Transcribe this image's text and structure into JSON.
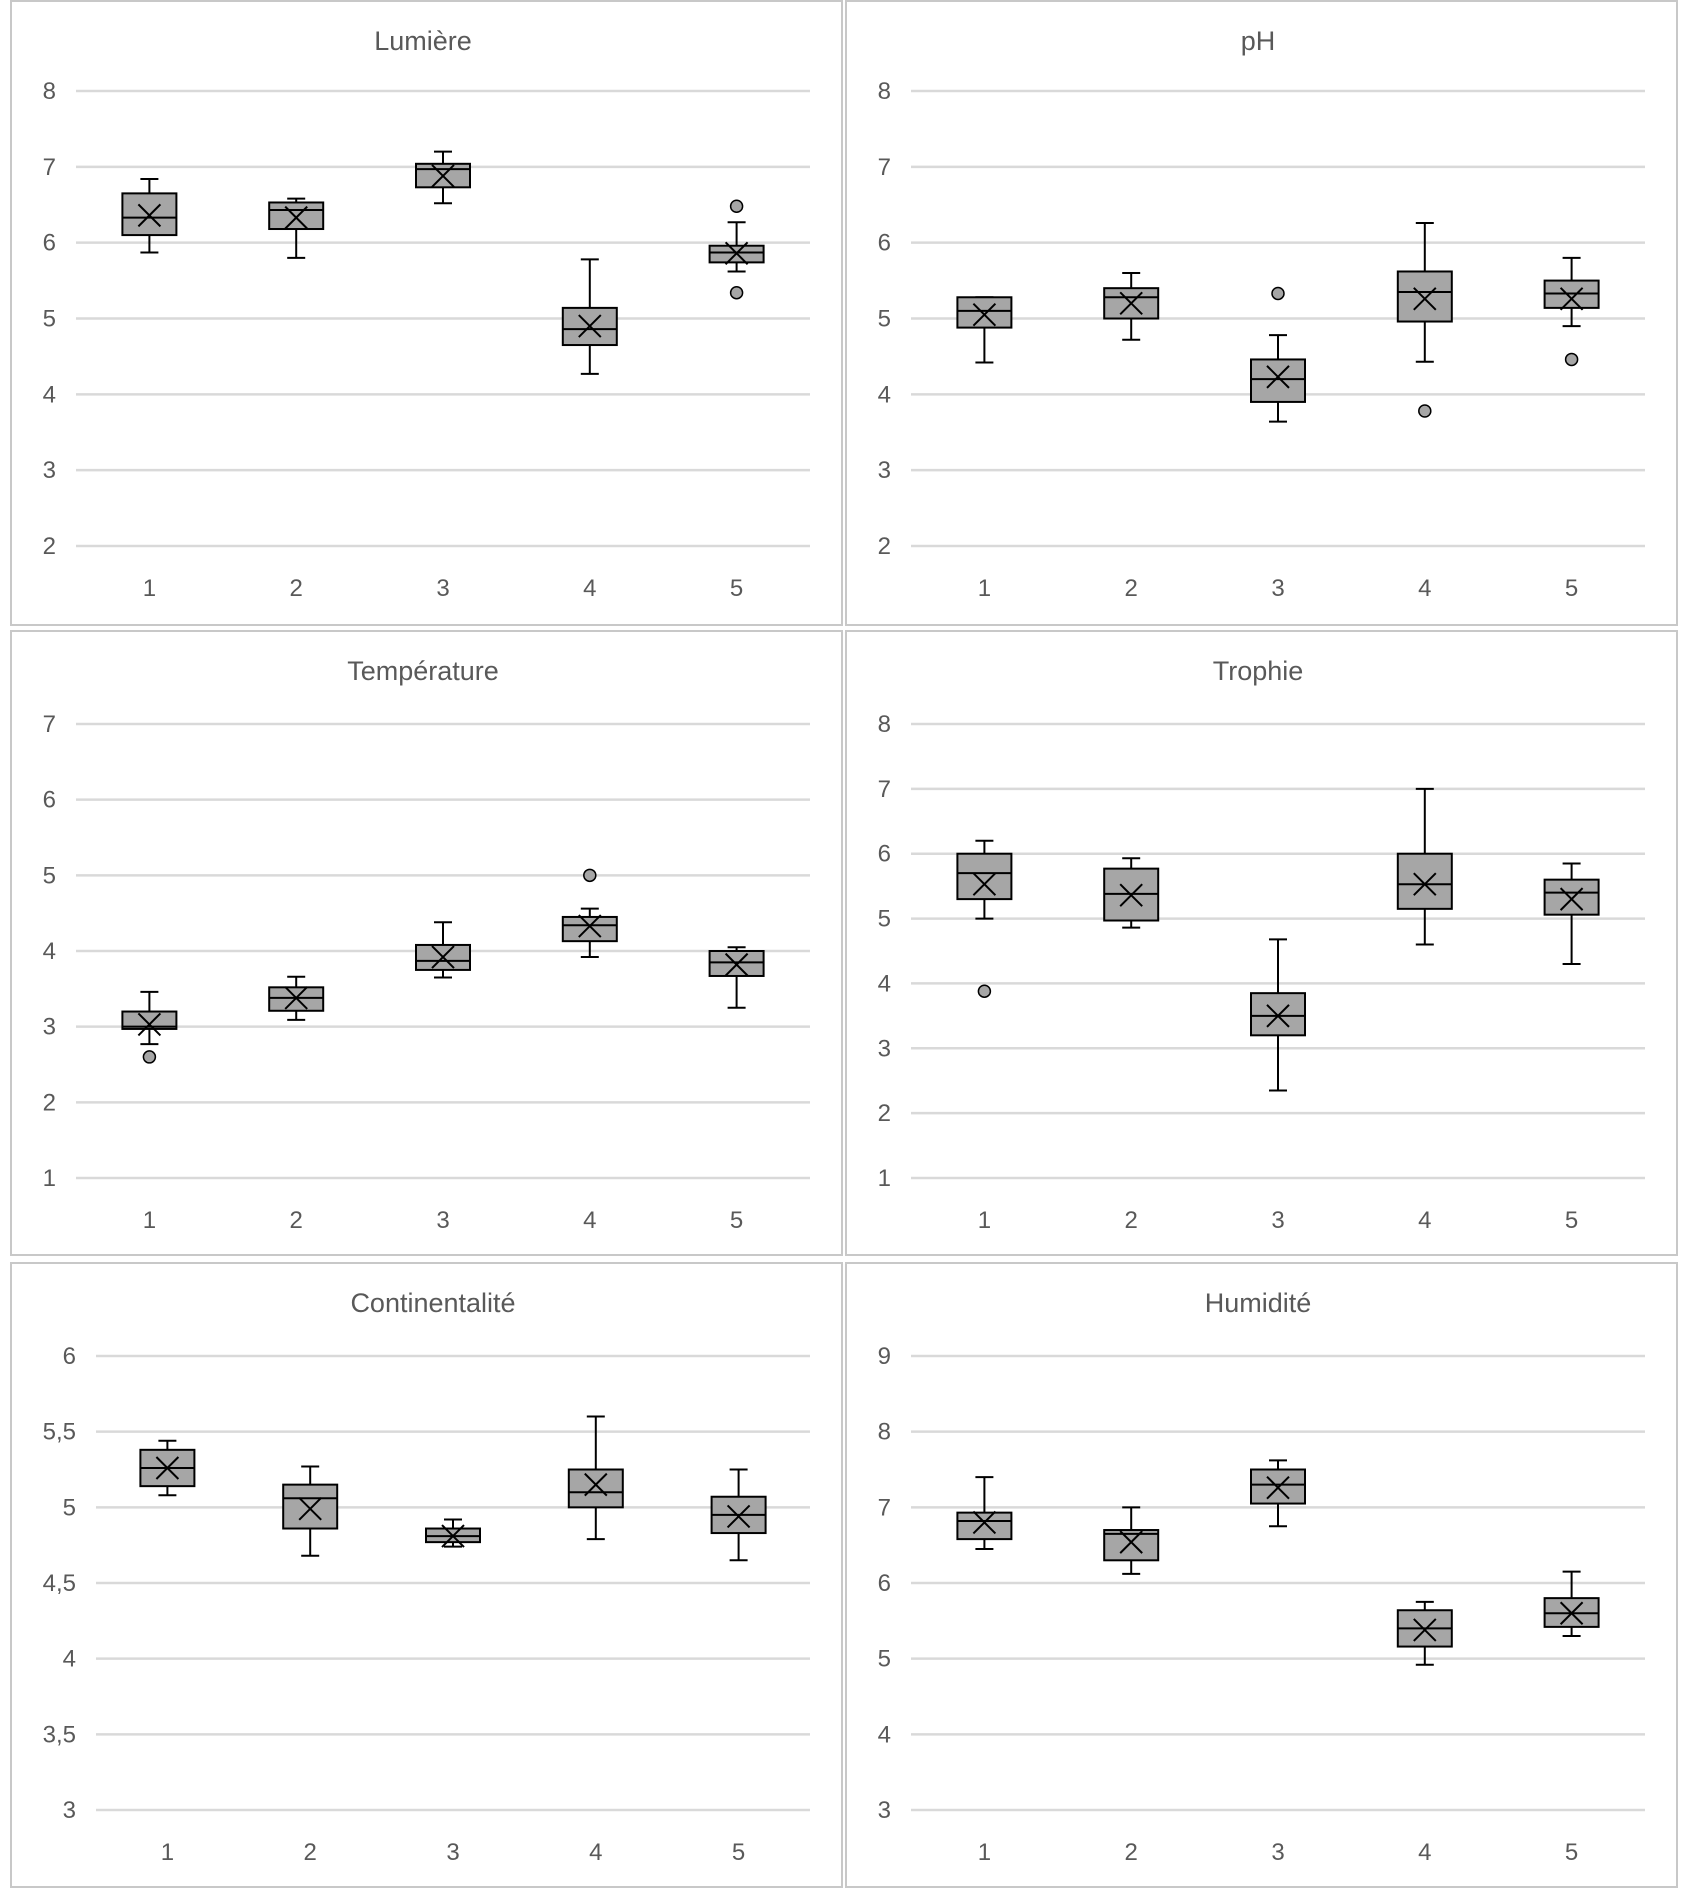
{
  "chart_data": [
    {
      "type": "boxplot",
      "title": "Lumière",
      "categories": [
        "1",
        "2",
        "3",
        "4",
        "5"
      ],
      "ylim": [
        2,
        8
      ],
      "yticks": [
        "2",
        "3",
        "4",
        "5",
        "6",
        "7",
        "8"
      ],
      "grid": true,
      "boxes": [
        {
          "category": "1",
          "whisker_low": 5.87,
          "q1": 6.1,
          "median": 6.33,
          "q3": 6.65,
          "whisker_high": 6.84,
          "mean": 6.36,
          "outliers": []
        },
        {
          "category": "2",
          "whisker_low": 5.8,
          "q1": 6.18,
          "median": 6.43,
          "q3": 6.53,
          "whisker_high": 6.58,
          "mean": 6.33,
          "outliers": []
        },
        {
          "category": "3",
          "whisker_low": 6.52,
          "q1": 6.73,
          "median": 6.97,
          "q3": 7.04,
          "whisker_high": 7.2,
          "mean": 6.88,
          "outliers": []
        },
        {
          "category": "4",
          "whisker_low": 4.27,
          "q1": 4.65,
          "median": 4.86,
          "q3": 5.14,
          "whisker_high": 5.78,
          "mean": 4.9,
          "outliers": []
        },
        {
          "category": "5",
          "whisker_low": 5.62,
          "q1": 5.74,
          "median": 5.87,
          "q3": 5.96,
          "whisker_high": 6.27,
          "mean": 5.86,
          "outliers": [
            6.48,
            5.34
          ]
        }
      ]
    },
    {
      "type": "boxplot",
      "title": "pH",
      "categories": [
        "1",
        "2",
        "3",
        "4",
        "5"
      ],
      "ylim": [
        2,
        8
      ],
      "yticks": [
        "2",
        "3",
        "4",
        "5",
        "6",
        "7",
        "8"
      ],
      "grid": true,
      "boxes": [
        {
          "category": "1",
          "whisker_low": 4.42,
          "q1": 4.88,
          "median": 5.1,
          "q3": 5.28,
          "whisker_high": 5.28,
          "mean": 5.05,
          "outliers": []
        },
        {
          "category": "2",
          "whisker_low": 4.72,
          "q1": 5.0,
          "median": 5.28,
          "q3": 5.4,
          "whisker_high": 5.6,
          "mean": 5.2,
          "outliers": []
        },
        {
          "category": "3",
          "whisker_low": 3.64,
          "q1": 3.9,
          "median": 4.2,
          "q3": 4.46,
          "whisker_high": 4.78,
          "mean": 4.23,
          "outliers": [
            5.33
          ]
        },
        {
          "category": "4",
          "whisker_low": 4.43,
          "q1": 4.96,
          "median": 5.35,
          "q3": 5.62,
          "whisker_high": 6.26,
          "mean": 5.26,
          "outliers": [
            3.78
          ]
        },
        {
          "category": "5",
          "whisker_low": 4.9,
          "q1": 5.14,
          "median": 5.33,
          "q3": 5.5,
          "whisker_high": 5.8,
          "mean": 5.26,
          "outliers": [
            4.46
          ]
        }
      ]
    },
    {
      "type": "boxplot",
      "title": "Température",
      "categories": [
        "1",
        "2",
        "3",
        "4",
        "5"
      ],
      "ylim": [
        1,
        7
      ],
      "yticks": [
        "1",
        "2",
        "3",
        "4",
        "5",
        "6",
        "7"
      ],
      "grid": true,
      "boxes": [
        {
          "category": "1",
          "whisker_low": 2.77,
          "q1": 2.97,
          "median": 3.0,
          "q3": 3.2,
          "whisker_high": 3.46,
          "mean": 3.03,
          "outliers": [
            2.6
          ]
        },
        {
          "category": "2",
          "whisker_low": 3.09,
          "q1": 3.21,
          "median": 3.38,
          "q3": 3.52,
          "whisker_high": 3.66,
          "mean": 3.38,
          "outliers": []
        },
        {
          "category": "3",
          "whisker_low": 3.65,
          "q1": 3.75,
          "median": 3.87,
          "q3": 4.08,
          "whisker_high": 4.38,
          "mean": 3.92,
          "outliers": []
        },
        {
          "category": "4",
          "whisker_low": 3.92,
          "q1": 4.13,
          "median": 4.34,
          "q3": 4.45,
          "whisker_high": 4.56,
          "mean": 4.33,
          "outliers": [
            5.0
          ]
        },
        {
          "category": "5",
          "whisker_low": 3.25,
          "q1": 3.67,
          "median": 3.85,
          "q3": 4.0,
          "whisker_high": 4.05,
          "mean": 3.82,
          "outliers": []
        }
      ]
    },
    {
      "type": "boxplot",
      "title": "Trophie",
      "categories": [
        "1",
        "2",
        "3",
        "4",
        "5"
      ],
      "ylim": [
        1,
        8
      ],
      "yticks": [
        "1",
        "2",
        "3",
        "4",
        "5",
        "6",
        "7",
        "8"
      ],
      "grid": true,
      "boxes": [
        {
          "category": "1",
          "whisker_low": 5.0,
          "q1": 5.3,
          "median": 5.7,
          "q3": 6.0,
          "whisker_high": 6.2,
          "mean": 5.53,
          "outliers": [
            3.88
          ]
        },
        {
          "category": "2",
          "whisker_low": 4.86,
          "q1": 4.97,
          "median": 5.38,
          "q3": 5.77,
          "whisker_high": 5.93,
          "mean": 5.36,
          "outliers": []
        },
        {
          "category": "3",
          "whisker_low": 2.35,
          "q1": 3.2,
          "median": 3.5,
          "q3": 3.85,
          "whisker_high": 4.68,
          "mean": 3.5,
          "outliers": []
        },
        {
          "category": "4",
          "whisker_low": 4.6,
          "q1": 5.15,
          "median": 5.53,
          "q3": 6.0,
          "whisker_high": 7.0,
          "mean": 5.53,
          "outliers": []
        },
        {
          "category": "5",
          "whisker_low": 4.3,
          "q1": 5.06,
          "median": 5.4,
          "q3": 5.6,
          "whisker_high": 5.85,
          "mean": 5.3,
          "outliers": []
        }
      ]
    },
    {
      "type": "boxplot",
      "title": "Continentalité",
      "categories": [
        "1",
        "2",
        "3",
        "4",
        "5"
      ],
      "ylim": [
        3,
        6
      ],
      "yticks": [
        "3",
        "3,5",
        "4",
        "4,5",
        "5",
        "5,5",
        "6"
      ],
      "grid": true,
      "boxes": [
        {
          "category": "1",
          "whisker_low": 5.08,
          "q1": 5.14,
          "median": 5.26,
          "q3": 5.38,
          "whisker_high": 5.44,
          "mean": 5.26,
          "outliers": []
        },
        {
          "category": "2",
          "whisker_low": 4.68,
          "q1": 4.86,
          "median": 5.06,
          "q3": 5.15,
          "whisker_high": 5.27,
          "mean": 4.99,
          "outliers": []
        },
        {
          "category": "3",
          "whisker_low": 4.74,
          "q1": 4.77,
          "median": 4.81,
          "q3": 4.86,
          "whisker_high": 4.92,
          "mean": 4.81,
          "outliers": []
        },
        {
          "category": "4",
          "whisker_low": 4.79,
          "q1": 5.0,
          "median": 5.1,
          "q3": 5.25,
          "whisker_high": 5.6,
          "mean": 5.15,
          "outliers": []
        },
        {
          "category": "5",
          "whisker_low": 4.65,
          "q1": 4.83,
          "median": 4.95,
          "q3": 5.07,
          "whisker_high": 5.25,
          "mean": 4.94,
          "outliers": []
        }
      ]
    },
    {
      "type": "boxplot",
      "title": "Humidité",
      "categories": [
        "1",
        "2",
        "3",
        "4",
        "5"
      ],
      "ylim": [
        3,
        9
      ],
      "yticks": [
        "3",
        "4",
        "5",
        "6",
        "7",
        "8",
        "9"
      ],
      "grid": true,
      "boxes": [
        {
          "category": "1",
          "whisker_low": 6.45,
          "q1": 6.58,
          "median": 6.82,
          "q3": 6.93,
          "whisker_high": 7.4,
          "mean": 6.8,
          "outliers": []
        },
        {
          "category": "2",
          "whisker_low": 6.12,
          "q1": 6.3,
          "median": 6.65,
          "q3": 6.7,
          "whisker_high": 7.0,
          "mean": 6.54,
          "outliers": []
        },
        {
          "category": "3",
          "whisker_low": 6.75,
          "q1": 7.05,
          "median": 7.3,
          "q3": 7.5,
          "whisker_high": 7.62,
          "mean": 7.26,
          "outliers": []
        },
        {
          "category": "4",
          "whisker_low": 4.92,
          "q1": 5.16,
          "median": 5.4,
          "q3": 5.64,
          "whisker_high": 5.75,
          "mean": 5.38,
          "outliers": []
        },
        {
          "category": "5",
          "whisker_low": 5.3,
          "q1": 5.42,
          "median": 5.6,
          "q3": 5.8,
          "whisker_high": 6.15,
          "mean": 5.6,
          "outliers": []
        }
      ]
    }
  ],
  "colors": {
    "box_fill": "#a6a6a6",
    "stroke": "#000000",
    "grid": "#d9d9d9",
    "text": "#595959",
    "border": "#c8c8c8"
  }
}
